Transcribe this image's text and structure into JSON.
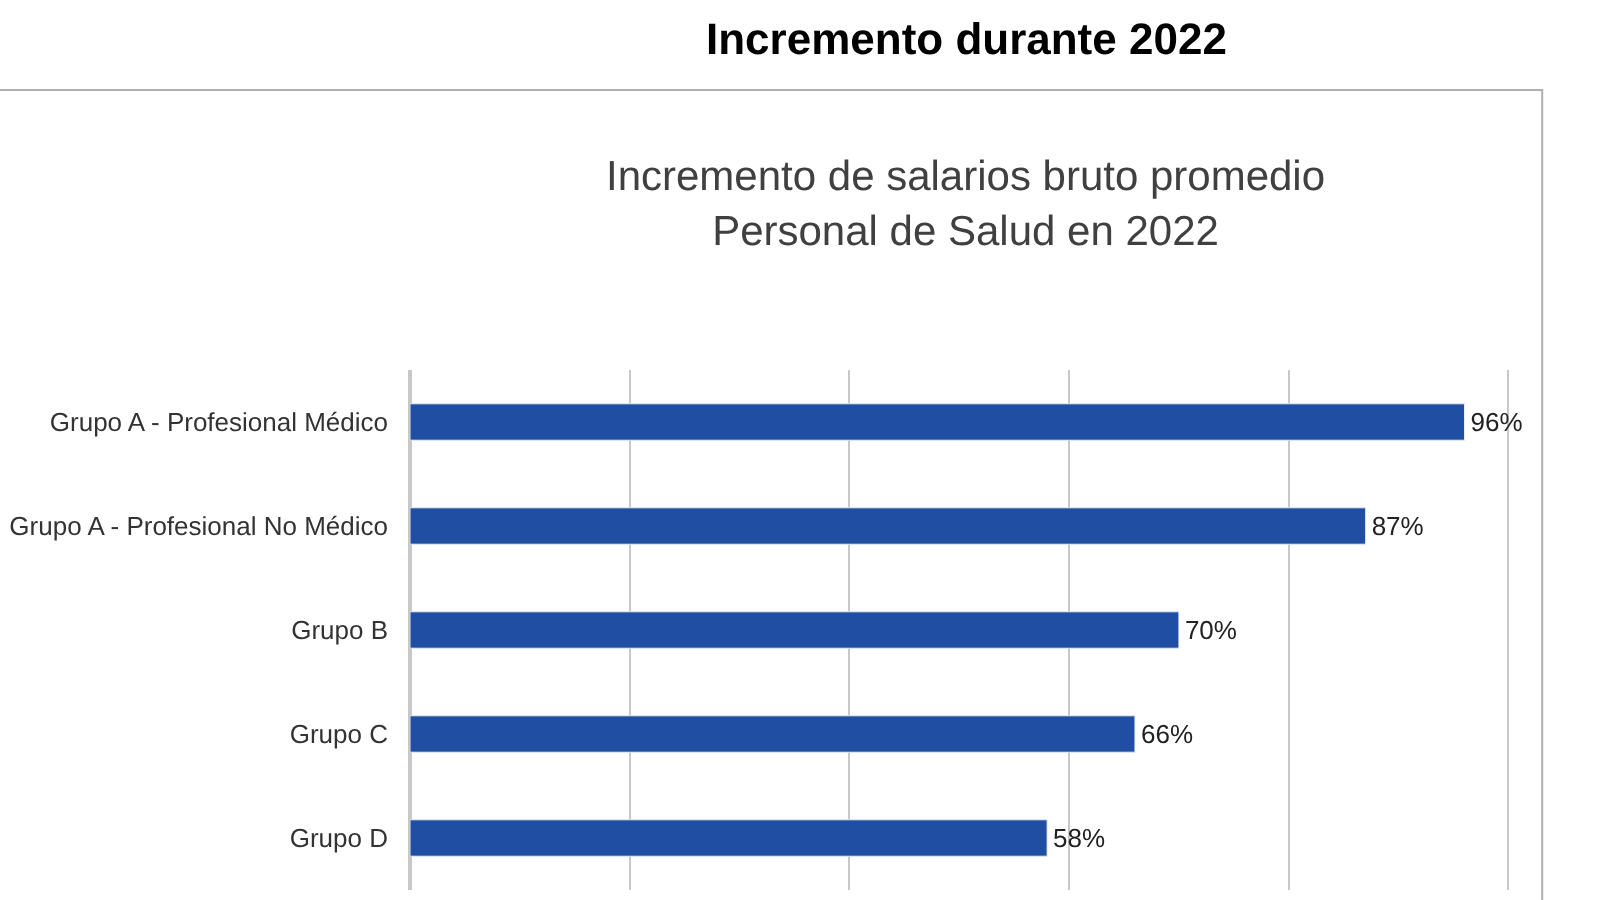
{
  "chart_data": {
    "type": "bar",
    "orientation": "horizontal",
    "title": "Incremento durante 2022",
    "subtitle": "Incremento de salarios bruto promedio\nPersonal de Salud en 2022",
    "categories": [
      "Grupo A - Profesional Médico",
      "Grupo A - Profesional No Médico",
      "Grupo B",
      "Grupo C",
      "Grupo D"
    ],
    "values": [
      96,
      87,
      70,
      66,
      58
    ],
    "value_labels": [
      "96%",
      "87%",
      "70%",
      "66%",
      "58%"
    ],
    "color": "#1f4ea3",
    "grid": "x",
    "tick_labels": "y",
    "legend": false
  }
}
